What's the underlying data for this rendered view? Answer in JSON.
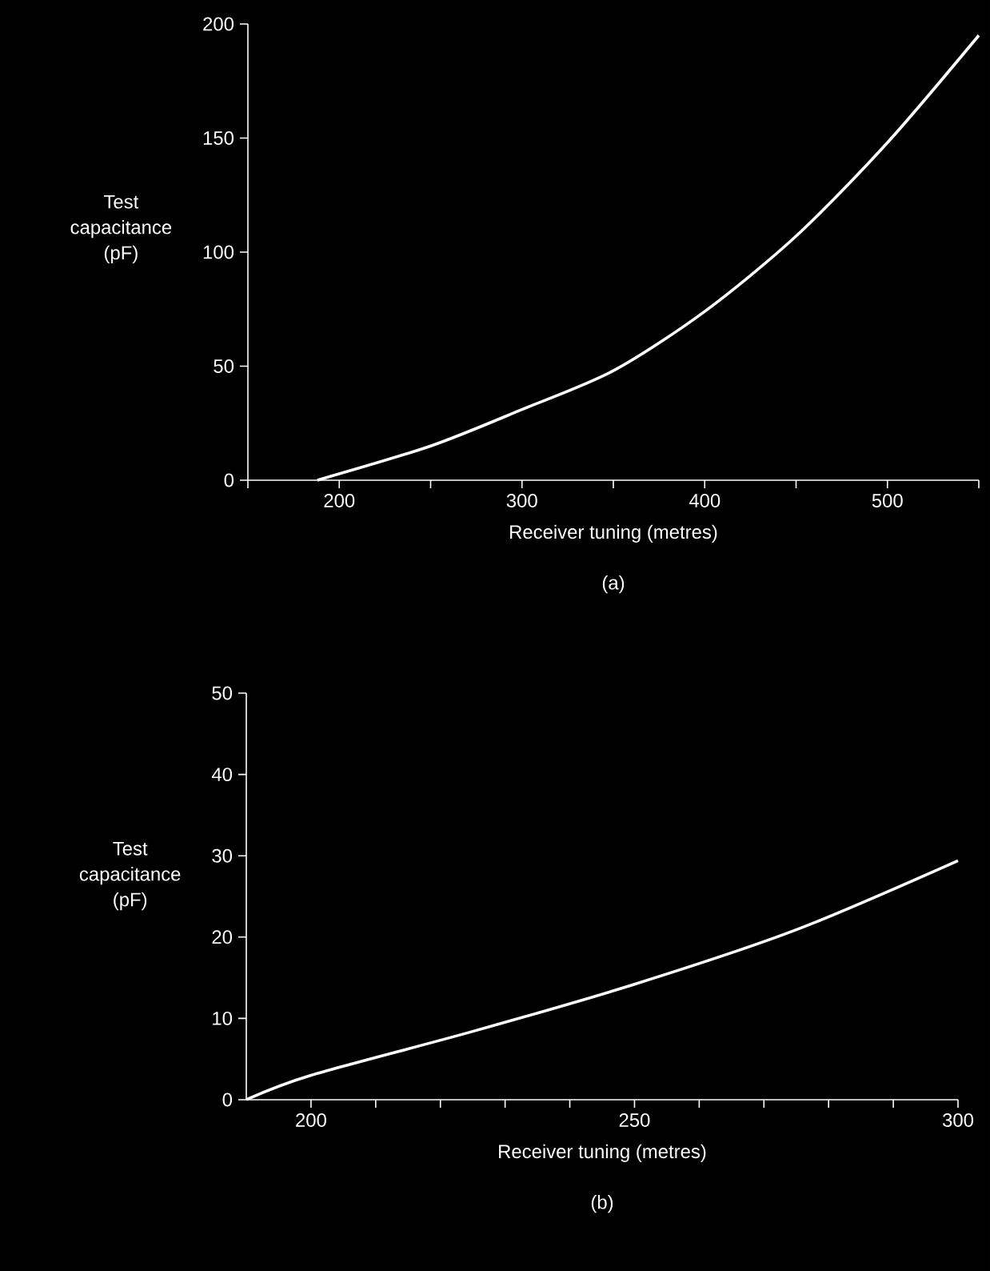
{
  "chart_data": [
    {
      "type": "line",
      "xlabel": "Receiver tuning (metres)",
      "ylabel": "Test capacitance (pF)",
      "annotations": [
        "(a)"
      ],
      "x": [
        188,
        250,
        300,
        350,
        400,
        450,
        500,
        550
      ],
      "series": [
        {
          "color": "#ffffff",
          "values": [
            0,
            15,
            31,
            48,
            74,
            107,
            148,
            195
          ]
        }
      ],
      "xlim": [
        150,
        550
      ],
      "ylim": [
        0,
        200
      ],
      "xticks": [
        {
          "value": 150,
          "label": null
        },
        200,
        {
          "value": 250,
          "label": null
        },
        300,
        {
          "value": 350,
          "label": null
        },
        400,
        {
          "value": 450,
          "label": null
        },
        500,
        {
          "value": 550,
          "label": null
        }
      ],
      "yticks": [
        0,
        50,
        100,
        150,
        200
      ]
    },
    {
      "type": "line",
      "xlabel": "Receiver tuning (metres)",
      "ylabel": "Test capacitance (pF)",
      "annotations": [
        "(b)"
      ],
      "x": [
        190,
        200,
        225,
        250,
        275,
        300
      ],
      "series": [
        {
          "color": "#ffffff",
          "values": [
            0,
            3.0,
            8.4,
            14.2,
            20.9,
            29.4
          ]
        }
      ],
      "xlim": [
        190,
        300
      ],
      "ylim": [
        0,
        50
      ],
      "xticks": [
        200,
        {
          "value": 210,
          "label": null
        },
        {
          "value": 220,
          "label": null
        },
        {
          "value": 230,
          "label": null
        },
        {
          "value": 240,
          "label": null
        },
        250,
        {
          "value": 260,
          "label": null
        },
        {
          "value": 270,
          "label": null
        },
        {
          "value": 280,
          "label": null
        },
        {
          "value": 290,
          "label": null
        },
        300
      ],
      "yticks": [
        0,
        10,
        20,
        30,
        40,
        50
      ]
    }
  ]
}
